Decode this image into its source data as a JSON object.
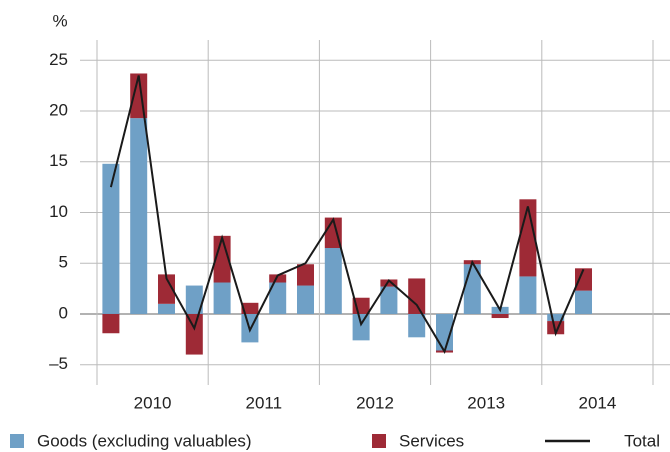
{
  "chart_data": {
    "type": "stacked_bar_line",
    "y_label": "%",
    "groups": [
      "2010",
      "2011",
      "2012",
      "2013",
      "2014"
    ],
    "series": [
      {
        "name": "Goods (excluding valuables)",
        "color": "#6fa0c6",
        "kind": "bar",
        "values": [
          14.8,
          19.3,
          1.0,
          2.8,
          3.1,
          -2.8,
          3.1,
          2.8,
          6.5,
          -2.6,
          2.7,
          -2.3,
          -3.6,
          4.9,
          0.7,
          3.7,
          -0.7,
          2.3
        ]
      },
      {
        "name": "Services",
        "color": "#9e2a36",
        "kind": "bar",
        "values": [
          -1.9,
          4.4,
          2.9,
          -4.0,
          4.6,
          1.1,
          0.8,
          2.1,
          3.0,
          1.6,
          0.7,
          3.5,
          -0.2,
          0.4,
          -0.4,
          7.6,
          -1.3,
          2.2
        ]
      },
      {
        "name": "Total",
        "color": "#1a1a1a",
        "kind": "line",
        "values": [
          12.5,
          23.5,
          3.5,
          -1.4,
          7.5,
          -1.6,
          3.8,
          5.0,
          9.3,
          -1.0,
          3.3,
          0.9,
          -3.7,
          5.1,
          0.4,
          10.6,
          -1.9,
          4.4
        ]
      }
    ],
    "ylim": [
      -7,
      27
    ],
    "yticks": [
      {
        "value": -5,
        "label": "–5"
      },
      0,
      5,
      10,
      15,
      20,
      25
    ],
    "grid": true
  }
}
